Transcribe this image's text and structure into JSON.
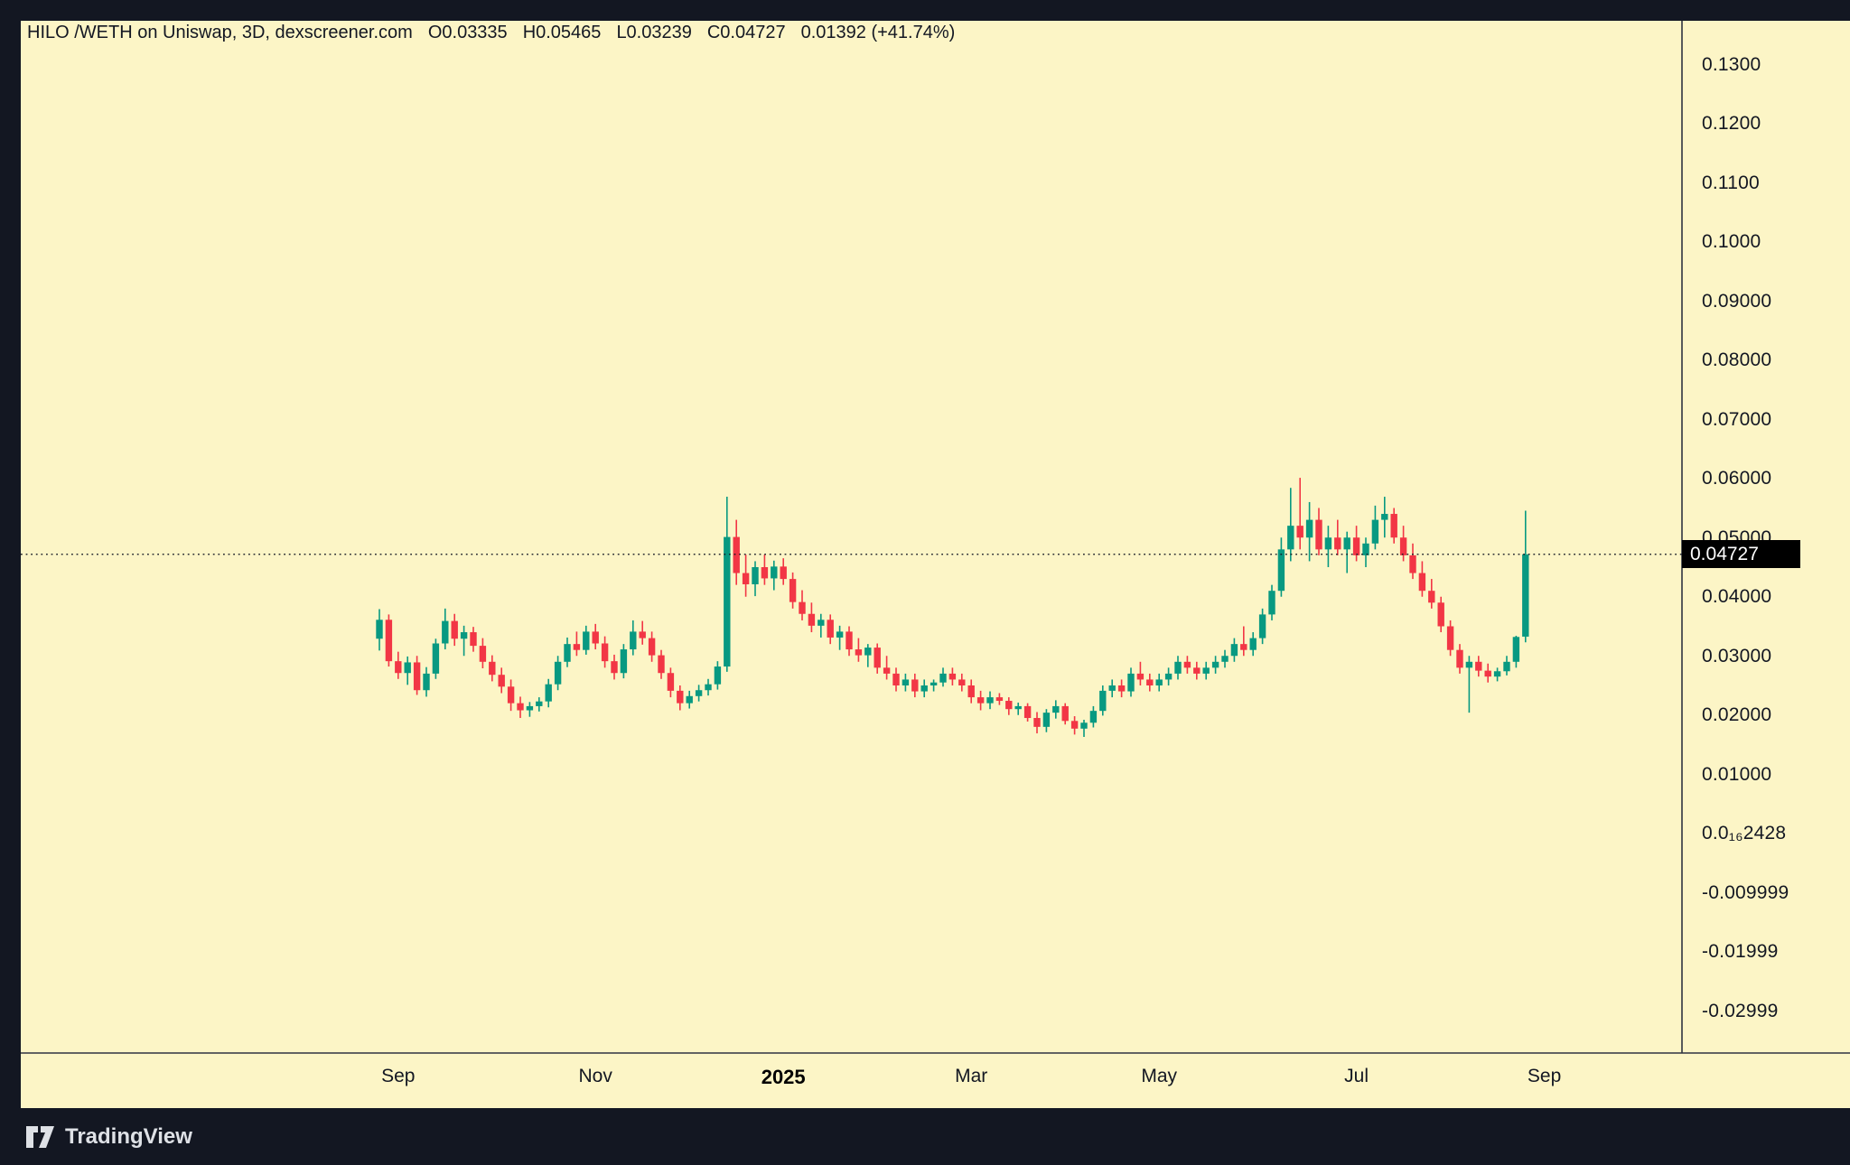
{
  "header": {
    "symbol_text": "HILO /WETH on Uniswap, 3D, dexscreener.com",
    "open_label": "O0.03335",
    "high_label": "H0.05465",
    "low_label": "L0.03239",
    "close_label": "C0.04727",
    "change_label": "0.01392 (+41.74%)"
  },
  "footer": {
    "brand": "TradingView"
  },
  "colors": {
    "frame_bg": "#131722",
    "chart_bg": "#FCF5C6",
    "up": "#089981",
    "down": "#F23645",
    "text_dark": "#131722",
    "axis_line": "#2E3340",
    "price_line": "#131722",
    "badge_bg": "#000000",
    "badge_text": "#FFFFFF",
    "brand_text": "#DEE1E6"
  },
  "chart_data": {
    "type": "candlestick",
    "pair": "HILO/WETH",
    "dex": "Uniswap",
    "interval": "3D",
    "source": "dexscreener.com",
    "title": "HILO /WETH on Uniswap, 3D, dexscreener.com",
    "last_candle": {
      "open": 0.03335,
      "high": 0.05465,
      "low": 0.03239,
      "close": 0.04727,
      "change": 0.01392,
      "change_pct": "+41.74%"
    },
    "price_line": {
      "value": 0.04727,
      "label": "0.04727"
    },
    "y_axis": {
      "visible_range": [
        -0.037,
        0.1375
      ],
      "grid": false,
      "ticks": [
        {
          "label": "0.1300",
          "value": 0.13
        },
        {
          "label": "0.1200",
          "value": 0.12
        },
        {
          "label": "0.1100",
          "value": 0.11
        },
        {
          "label": "0.1000",
          "value": 0.1
        },
        {
          "label": "0.09000",
          "value": 0.09
        },
        {
          "label": "0.08000",
          "value": 0.08
        },
        {
          "label": "0.07000",
          "value": 0.07
        },
        {
          "label": "0.06000",
          "value": 0.06
        },
        {
          "label": "0.05000",
          "value": 0.05
        },
        {
          "label": "0.04000",
          "value": 0.04
        },
        {
          "label": "0.03000",
          "value": 0.03
        },
        {
          "label": "0.02000",
          "value": 0.02
        },
        {
          "label": "0.01000",
          "value": 0.01
        },
        {
          "label": "0.0₁₆2428",
          "value": 0.0
        },
        {
          "label": "-0.009999",
          "value": -0.01
        },
        {
          "label": "-0.01999",
          "value": -0.02
        },
        {
          "label": "-0.02999",
          "value": -0.03
        }
      ]
    },
    "x_axis": {
      "ticks": [
        {
          "label": "Sep",
          "index": 2,
          "bold": false
        },
        {
          "label": "Nov",
          "index": 23,
          "bold": false
        },
        {
          "label": "2025",
          "index": 43,
          "bold": true
        },
        {
          "label": "Mar",
          "index": 63,
          "bold": false
        },
        {
          "label": "May",
          "index": 83,
          "bold": false
        },
        {
          "label": "Jul",
          "index": 104,
          "bold": false
        },
        {
          "label": "Sep",
          "index": 124,
          "bold": false
        }
      ]
    },
    "candles": [
      [
        0.033,
        0.038,
        0.031,
        0.0362
      ],
      [
        0.0362,
        0.0371,
        0.0283,
        0.0292
      ],
      [
        0.0292,
        0.0308,
        0.0262,
        0.0272
      ],
      [
        0.0272,
        0.03,
        0.0252,
        0.029
      ],
      [
        0.029,
        0.0301,
        0.0235,
        0.0243
      ],
      [
        0.0243,
        0.0282,
        0.0232,
        0.0271
      ],
      [
        0.0271,
        0.033,
        0.0262,
        0.0322
      ],
      [
        0.0322,
        0.0381,
        0.0312,
        0.036
      ],
      [
        0.036,
        0.0372,
        0.0318,
        0.033
      ],
      [
        0.033,
        0.0352,
        0.0301,
        0.0341
      ],
      [
        0.0341,
        0.035,
        0.0308,
        0.0318
      ],
      [
        0.0318,
        0.0331,
        0.028,
        0.0291
      ],
      [
        0.0291,
        0.0302,
        0.0258,
        0.0269
      ],
      [
        0.0269,
        0.0281,
        0.0238,
        0.0249
      ],
      [
        0.0249,
        0.0261,
        0.0208,
        0.0221
      ],
      [
        0.0221,
        0.0232,
        0.0196,
        0.0209
      ],
      [
        0.0209,
        0.0223,
        0.0198,
        0.0216
      ],
      [
        0.0216,
        0.0231,
        0.0207,
        0.0224
      ],
      [
        0.0224,
        0.0262,
        0.0214,
        0.0253
      ],
      [
        0.0253,
        0.0301,
        0.0243,
        0.0291
      ],
      [
        0.0291,
        0.0332,
        0.0282,
        0.0321
      ],
      [
        0.0321,
        0.0342,
        0.0301,
        0.0311
      ],
      [
        0.0311,
        0.0352,
        0.0303,
        0.0342
      ],
      [
        0.0342,
        0.0355,
        0.0312,
        0.0322
      ],
      [
        0.0322,
        0.0334,
        0.0281,
        0.0292
      ],
      [
        0.0292,
        0.0303,
        0.0261,
        0.0272
      ],
      [
        0.0272,
        0.0321,
        0.0263,
        0.0312
      ],
      [
        0.0312,
        0.0361,
        0.0302,
        0.0342
      ],
      [
        0.0342,
        0.036,
        0.032,
        0.0331
      ],
      [
        0.0331,
        0.0342,
        0.0291,
        0.0302
      ],
      [
        0.0302,
        0.0311,
        0.0262,
        0.0272
      ],
      [
        0.0272,
        0.0281,
        0.0231,
        0.0242
      ],
      [
        0.0242,
        0.0251,
        0.0209,
        0.0221
      ],
      [
        0.0221,
        0.0242,
        0.0212,
        0.0233
      ],
      [
        0.0233,
        0.0252,
        0.0224,
        0.0243
      ],
      [
        0.0243,
        0.0262,
        0.0234,
        0.0253
      ],
      [
        0.0253,
        0.0292,
        0.0244,
        0.0283
      ],
      [
        0.0283,
        0.057,
        0.0274,
        0.0502
      ],
      [
        0.0502,
        0.0531,
        0.0421,
        0.0441
      ],
      [
        0.0441,
        0.0472,
        0.0401,
        0.0422
      ],
      [
        0.0422,
        0.0461,
        0.0402,
        0.0451
      ],
      [
        0.0451,
        0.0472,
        0.0421,
        0.0432
      ],
      [
        0.0432,
        0.0462,
        0.0412,
        0.0452
      ],
      [
        0.0452,
        0.0466,
        0.0421,
        0.0431
      ],
      [
        0.0431,
        0.0442,
        0.0381,
        0.0392
      ],
      [
        0.0392,
        0.0412,
        0.0361,
        0.0372
      ],
      [
        0.0372,
        0.0391,
        0.0341,
        0.0352
      ],
      [
        0.0352,
        0.0372,
        0.0332,
        0.0362
      ],
      [
        0.0362,
        0.0371,
        0.0321,
        0.0332
      ],
      [
        0.0332,
        0.0352,
        0.0311,
        0.0342
      ],
      [
        0.0342,
        0.0351,
        0.0301,
        0.0312
      ],
      [
        0.0312,
        0.0331,
        0.0291,
        0.0302
      ],
      [
        0.0302,
        0.0321,
        0.0282,
        0.0315
      ],
      [
        0.0315,
        0.0322,
        0.0271,
        0.0281
      ],
      [
        0.0281,
        0.0301,
        0.0261,
        0.0271
      ],
      [
        0.0271,
        0.0281,
        0.0241,
        0.0251
      ],
      [
        0.0251,
        0.0271,
        0.0241,
        0.0261
      ],
      [
        0.0261,
        0.0271,
        0.0231,
        0.0241
      ],
      [
        0.0241,
        0.0261,
        0.0231,
        0.0251
      ],
      [
        0.0251,
        0.0261,
        0.0241,
        0.0256
      ],
      [
        0.0256,
        0.0281,
        0.0249,
        0.0271
      ],
      [
        0.0271,
        0.0281,
        0.0251,
        0.0261
      ],
      [
        0.0261,
        0.0271,
        0.0241,
        0.0251
      ],
      [
        0.0251,
        0.0261,
        0.0221,
        0.0231
      ],
      [
        0.0231,
        0.0242,
        0.0209,
        0.0221
      ],
      [
        0.0221,
        0.0241,
        0.0211,
        0.0231
      ],
      [
        0.0231,
        0.0238,
        0.0218,
        0.0225
      ],
      [
        0.0225,
        0.0231,
        0.0201,
        0.0211
      ],
      [
        0.0211,
        0.0222,
        0.0201,
        0.0216
      ],
      [
        0.0216,
        0.0221,
        0.019,
        0.0196
      ],
      [
        0.0196,
        0.0206,
        0.017,
        0.0181
      ],
      [
        0.0181,
        0.0211,
        0.0172,
        0.0205
      ],
      [
        0.0205,
        0.0226,
        0.0195,
        0.0216
      ],
      [
        0.0216,
        0.0221,
        0.0185,
        0.0191
      ],
      [
        0.0191,
        0.0199,
        0.0168,
        0.0178
      ],
      [
        0.0178,
        0.0193,
        0.0164,
        0.0188
      ],
      [
        0.0188,
        0.0216,
        0.018,
        0.0208
      ],
      [
        0.0208,
        0.0251,
        0.02,
        0.0242
      ],
      [
        0.0242,
        0.0261,
        0.0231,
        0.0251
      ],
      [
        0.0251,
        0.0261,
        0.0231,
        0.0241
      ],
      [
        0.0241,
        0.0281,
        0.0232,
        0.0271
      ],
      [
        0.0271,
        0.0291,
        0.0251,
        0.0261
      ],
      [
        0.0261,
        0.0271,
        0.0241,
        0.0251
      ],
      [
        0.0251,
        0.0271,
        0.0241,
        0.0261
      ],
      [
        0.0261,
        0.0281,
        0.0251,
        0.0271
      ],
      [
        0.0271,
        0.0301,
        0.0261,
        0.0291
      ],
      [
        0.0291,
        0.0301,
        0.0271,
        0.0281
      ],
      [
        0.0281,
        0.0291,
        0.0261,
        0.0271
      ],
      [
        0.0271,
        0.0291,
        0.0261,
        0.0281
      ],
      [
        0.0281,
        0.0301,
        0.0271,
        0.0291
      ],
      [
        0.0291,
        0.0311,
        0.0281,
        0.0301
      ],
      [
        0.0301,
        0.0331,
        0.0291,
        0.0321
      ],
      [
        0.0321,
        0.0351,
        0.0301,
        0.0311
      ],
      [
        0.0311,
        0.0341,
        0.0301,
        0.0331
      ],
      [
        0.0331,
        0.0381,
        0.0321,
        0.0371
      ],
      [
        0.0371,
        0.0421,
        0.0361,
        0.0411
      ],
      [
        0.0411,
        0.0501,
        0.0401,
        0.0481
      ],
      [
        0.0481,
        0.0585,
        0.0461,
        0.0521
      ],
      [
        0.0521,
        0.0602,
        0.0481,
        0.0501
      ],
      [
        0.0501,
        0.0561,
        0.0461,
        0.0531
      ],
      [
        0.0531,
        0.0551,
        0.0471,
        0.0481
      ],
      [
        0.0481,
        0.0521,
        0.0451,
        0.0501
      ],
      [
        0.0501,
        0.0531,
        0.0471,
        0.0481
      ],
      [
        0.0481,
        0.0511,
        0.0441,
        0.0501
      ],
      [
        0.0501,
        0.0521,
        0.0461,
        0.0471
      ],
      [
        0.0471,
        0.0501,
        0.0451,
        0.0491
      ],
      [
        0.0491,
        0.0555,
        0.0481,
        0.0531
      ],
      [
        0.0531,
        0.057,
        0.0501,
        0.0541
      ],
      [
        0.0541,
        0.0551,
        0.0491,
        0.0501
      ],
      [
        0.0501,
        0.0521,
        0.0461,
        0.0471
      ],
      [
        0.0471,
        0.0491,
        0.0431,
        0.0441
      ],
      [
        0.0441,
        0.0461,
        0.0401,
        0.0411
      ],
      [
        0.0411,
        0.0431,
        0.0381,
        0.0391
      ],
      [
        0.0391,
        0.0401,
        0.0341,
        0.0351
      ],
      [
        0.0351,
        0.0361,
        0.0301,
        0.0311
      ],
      [
        0.0311,
        0.0321,
        0.0271,
        0.0281
      ],
      [
        0.0281,
        0.0301,
        0.0205,
        0.0291
      ],
      [
        0.0291,
        0.0301,
        0.0266,
        0.0276
      ],
      [
        0.0276,
        0.0288,
        0.0256,
        0.0266
      ],
      [
        0.0266,
        0.0281,
        0.0258,
        0.0275
      ],
      [
        0.0275,
        0.0301,
        0.0268,
        0.0291
      ],
      [
        0.0291,
        0.0335,
        0.0281,
        0.0333
      ],
      [
        0.03335,
        0.05465,
        0.03239,
        0.04727
      ]
    ]
  }
}
